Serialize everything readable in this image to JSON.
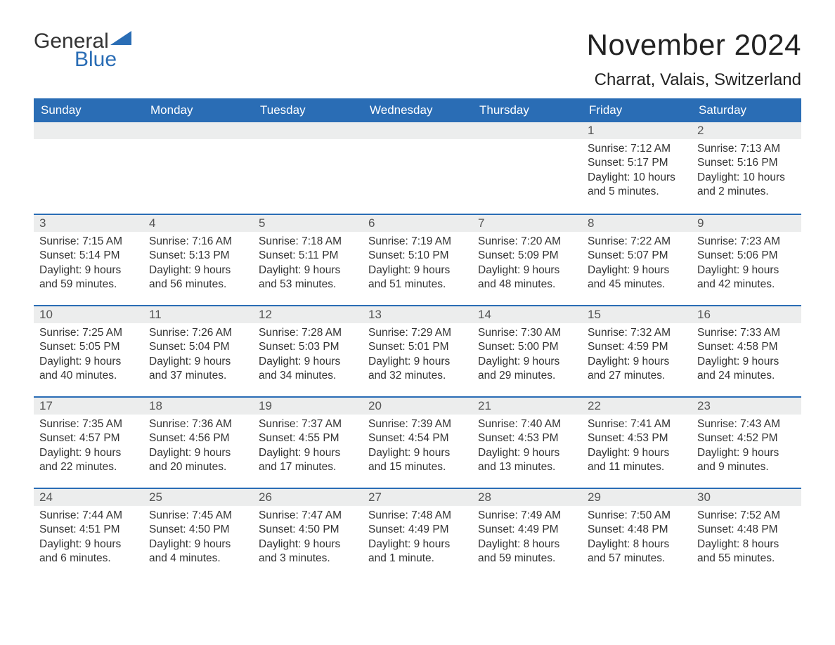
{
  "logo": {
    "word1": "General",
    "word2": "Blue",
    "triangle_color": "#2a6db5"
  },
  "title": "November 2024",
  "location": "Charrat, Valais, Switzerland",
  "colors": {
    "header_bg": "#2a6db5",
    "header_text": "#ffffff",
    "daynum_bg": "#eceded",
    "body_text": "#333333",
    "border": "#2a6db5"
  },
  "fonts": {
    "title_size_pt": 32,
    "location_size_pt": 18,
    "dow_size_pt": 13,
    "body_size_pt": 12
  },
  "days_of_week": [
    "Sunday",
    "Monday",
    "Tuesday",
    "Wednesday",
    "Thursday",
    "Friday",
    "Saturday"
  ],
  "weeks": [
    [
      null,
      null,
      null,
      null,
      null,
      {
        "n": "1",
        "sunrise": "Sunrise: 7:12 AM",
        "sunset": "Sunset: 5:17 PM",
        "daylight": "Daylight: 10 hours and 5 minutes."
      },
      {
        "n": "2",
        "sunrise": "Sunrise: 7:13 AM",
        "sunset": "Sunset: 5:16 PM",
        "daylight": "Daylight: 10 hours and 2 minutes."
      }
    ],
    [
      {
        "n": "3",
        "sunrise": "Sunrise: 7:15 AM",
        "sunset": "Sunset: 5:14 PM",
        "daylight": "Daylight: 9 hours and 59 minutes."
      },
      {
        "n": "4",
        "sunrise": "Sunrise: 7:16 AM",
        "sunset": "Sunset: 5:13 PM",
        "daylight": "Daylight: 9 hours and 56 minutes."
      },
      {
        "n": "5",
        "sunrise": "Sunrise: 7:18 AM",
        "sunset": "Sunset: 5:11 PM",
        "daylight": "Daylight: 9 hours and 53 minutes."
      },
      {
        "n": "6",
        "sunrise": "Sunrise: 7:19 AM",
        "sunset": "Sunset: 5:10 PM",
        "daylight": "Daylight: 9 hours and 51 minutes."
      },
      {
        "n": "7",
        "sunrise": "Sunrise: 7:20 AM",
        "sunset": "Sunset: 5:09 PM",
        "daylight": "Daylight: 9 hours and 48 minutes."
      },
      {
        "n": "8",
        "sunrise": "Sunrise: 7:22 AM",
        "sunset": "Sunset: 5:07 PM",
        "daylight": "Daylight: 9 hours and 45 minutes."
      },
      {
        "n": "9",
        "sunrise": "Sunrise: 7:23 AM",
        "sunset": "Sunset: 5:06 PM",
        "daylight": "Daylight: 9 hours and 42 minutes."
      }
    ],
    [
      {
        "n": "10",
        "sunrise": "Sunrise: 7:25 AM",
        "sunset": "Sunset: 5:05 PM",
        "daylight": "Daylight: 9 hours and 40 minutes."
      },
      {
        "n": "11",
        "sunrise": "Sunrise: 7:26 AM",
        "sunset": "Sunset: 5:04 PM",
        "daylight": "Daylight: 9 hours and 37 minutes."
      },
      {
        "n": "12",
        "sunrise": "Sunrise: 7:28 AM",
        "sunset": "Sunset: 5:03 PM",
        "daylight": "Daylight: 9 hours and 34 minutes."
      },
      {
        "n": "13",
        "sunrise": "Sunrise: 7:29 AM",
        "sunset": "Sunset: 5:01 PM",
        "daylight": "Daylight: 9 hours and 32 minutes."
      },
      {
        "n": "14",
        "sunrise": "Sunrise: 7:30 AM",
        "sunset": "Sunset: 5:00 PM",
        "daylight": "Daylight: 9 hours and 29 minutes."
      },
      {
        "n": "15",
        "sunrise": "Sunrise: 7:32 AM",
        "sunset": "Sunset: 4:59 PM",
        "daylight": "Daylight: 9 hours and 27 minutes."
      },
      {
        "n": "16",
        "sunrise": "Sunrise: 7:33 AM",
        "sunset": "Sunset: 4:58 PM",
        "daylight": "Daylight: 9 hours and 24 minutes."
      }
    ],
    [
      {
        "n": "17",
        "sunrise": "Sunrise: 7:35 AM",
        "sunset": "Sunset: 4:57 PM",
        "daylight": "Daylight: 9 hours and 22 minutes."
      },
      {
        "n": "18",
        "sunrise": "Sunrise: 7:36 AM",
        "sunset": "Sunset: 4:56 PM",
        "daylight": "Daylight: 9 hours and 20 minutes."
      },
      {
        "n": "19",
        "sunrise": "Sunrise: 7:37 AM",
        "sunset": "Sunset: 4:55 PM",
        "daylight": "Daylight: 9 hours and 17 minutes."
      },
      {
        "n": "20",
        "sunrise": "Sunrise: 7:39 AM",
        "sunset": "Sunset: 4:54 PM",
        "daylight": "Daylight: 9 hours and 15 minutes."
      },
      {
        "n": "21",
        "sunrise": "Sunrise: 7:40 AM",
        "sunset": "Sunset: 4:53 PM",
        "daylight": "Daylight: 9 hours and 13 minutes."
      },
      {
        "n": "22",
        "sunrise": "Sunrise: 7:41 AM",
        "sunset": "Sunset: 4:53 PM",
        "daylight": "Daylight: 9 hours and 11 minutes."
      },
      {
        "n": "23",
        "sunrise": "Sunrise: 7:43 AM",
        "sunset": "Sunset: 4:52 PM",
        "daylight": "Daylight: 9 hours and 9 minutes."
      }
    ],
    [
      {
        "n": "24",
        "sunrise": "Sunrise: 7:44 AM",
        "sunset": "Sunset: 4:51 PM",
        "daylight": "Daylight: 9 hours and 6 minutes."
      },
      {
        "n": "25",
        "sunrise": "Sunrise: 7:45 AM",
        "sunset": "Sunset: 4:50 PM",
        "daylight": "Daylight: 9 hours and 4 minutes."
      },
      {
        "n": "26",
        "sunrise": "Sunrise: 7:47 AM",
        "sunset": "Sunset: 4:50 PM",
        "daylight": "Daylight: 9 hours and 3 minutes."
      },
      {
        "n": "27",
        "sunrise": "Sunrise: 7:48 AM",
        "sunset": "Sunset: 4:49 PM",
        "daylight": "Daylight: 9 hours and 1 minute."
      },
      {
        "n": "28",
        "sunrise": "Sunrise: 7:49 AM",
        "sunset": "Sunset: 4:49 PM",
        "daylight": "Daylight: 8 hours and 59 minutes."
      },
      {
        "n": "29",
        "sunrise": "Sunrise: 7:50 AM",
        "sunset": "Sunset: 4:48 PM",
        "daylight": "Daylight: 8 hours and 57 minutes."
      },
      {
        "n": "30",
        "sunrise": "Sunrise: 7:52 AM",
        "sunset": "Sunset: 4:48 PM",
        "daylight": "Daylight: 8 hours and 55 minutes."
      }
    ]
  ]
}
